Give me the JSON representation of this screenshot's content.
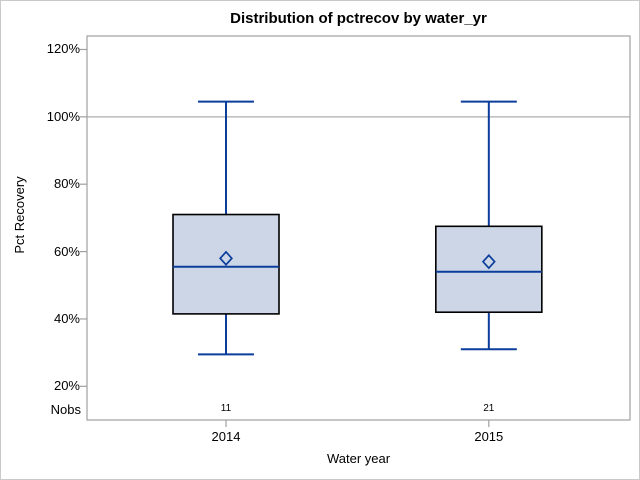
{
  "title": "Distribution of pctrecov by water_yr",
  "y_axis": {
    "label": "Pct Recovery",
    "ticks": [
      "120%",
      "100%",
      "80%",
      "60%",
      "40%",
      "20%"
    ],
    "tick_values": [
      120,
      100,
      80,
      60,
      40,
      20
    ]
  },
  "x_axis": {
    "label": "Water year",
    "categories": [
      "2014",
      "2015"
    ]
  },
  "nobs": {
    "label": "Nobs",
    "values": [
      "11",
      "21"
    ]
  },
  "chart_data": {
    "type": "boxplot",
    "title": "Distribution of pctrecov by water_yr",
    "xlabel": "Water year",
    "ylabel": "Pct Recovery",
    "ylim": [
      10,
      124
    ],
    "gridlines": [
      100
    ],
    "grid": "horizontal-at-100-only",
    "legend": "none",
    "categories": [
      "2014",
      "2015"
    ],
    "series": [
      {
        "category": "2014",
        "n": 11,
        "whisker_low": 29.5,
        "q1": 41.5,
        "median": 55.5,
        "q3": 71,
        "whisker_high": 104.5,
        "mean": 58
      },
      {
        "category": "2015",
        "n": 21,
        "whisker_low": 31,
        "q1": 42,
        "median": 54,
        "q3": 67.5,
        "whisker_high": 104.5,
        "mean": 57
      }
    ]
  },
  "colors": {
    "box_fill": "#ccd6e6",
    "box_border": "#000000",
    "line_blue": "#0b3d9b",
    "frame_gray": "#a0a0a0",
    "gridline_gray": "#aeaeae",
    "outer_border": "#c9c9c9",
    "text": "#000000"
  }
}
